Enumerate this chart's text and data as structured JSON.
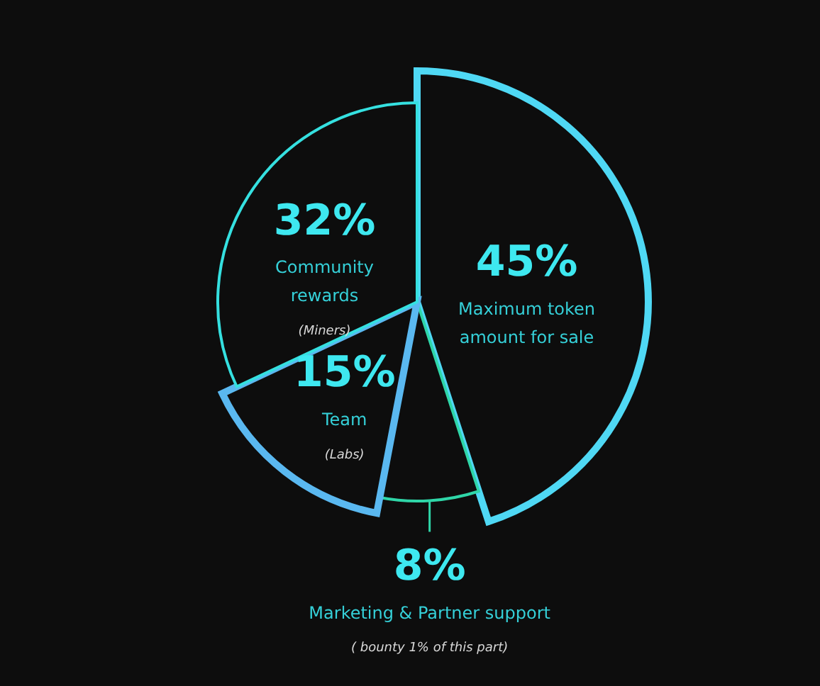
{
  "chart_data": {
    "type": "pie",
    "categories": [
      "Maximum token amount for sale",
      "Marketing & Partner support",
      "Team",
      "Community rewards"
    ],
    "values": [
      45,
      8,
      15,
      32
    ],
    "value_labels": [
      "45%",
      "8%",
      "15%",
      "32%"
    ],
    "colors": [
      "#4fd8f4",
      "#2fd6a8",
      "#5ab8f0",
      "#35e0e0"
    ],
    "annotations": [
      "( bounty 1% of this part)",
      "(Labs)",
      "(Miners)"
    ],
    "legend": false
  }
}
